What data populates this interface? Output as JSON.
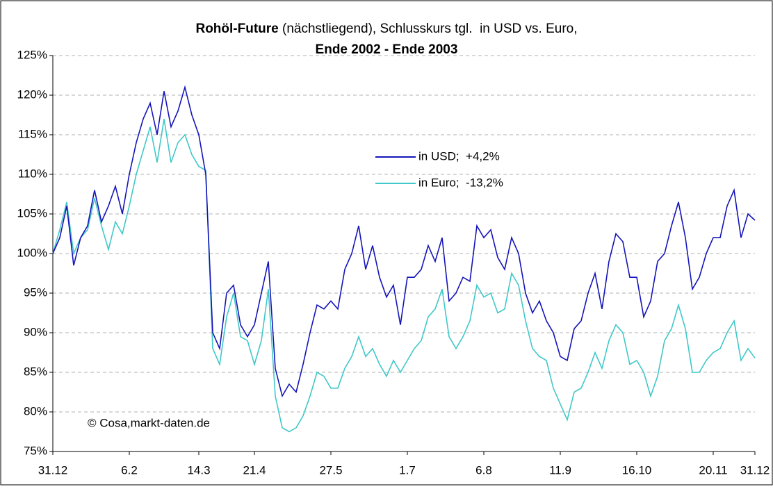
{
  "chart_data": {
    "type": "line",
    "title_parts": [
      "Rohöl-Future",
      " (nächstliegend), Schlusskurs tgl.  in USD vs. Euro,"
    ],
    "subtitle": "Ende 2002 - Ende 2003",
    "annotation": "© Cosa,markt-daten.de",
    "categories": [
      "31.12",
      null,
      null,
      null,
      null,
      null,
      null,
      null,
      null,
      null,
      null,
      "6.2",
      null,
      null,
      null,
      null,
      null,
      null,
      null,
      null,
      null,
      "14.3",
      null,
      null,
      null,
      null,
      null,
      null,
      null,
      "21.4",
      null,
      null,
      null,
      null,
      null,
      null,
      null,
      null,
      null,
      null,
      "27.5",
      null,
      null,
      null,
      null,
      null,
      null,
      null,
      null,
      null,
      null,
      "1.7",
      null,
      null,
      null,
      null,
      null,
      null,
      null,
      null,
      null,
      null,
      "6.8",
      null,
      null,
      null,
      null,
      null,
      null,
      null,
      null,
      null,
      null,
      "11.9",
      null,
      null,
      null,
      null,
      null,
      null,
      null,
      null,
      null,
      null,
      "16.10",
      null,
      null,
      null,
      null,
      null,
      null,
      null,
      null,
      null,
      null,
      "20.11",
      null,
      null,
      null,
      null,
      null,
      "31.12"
    ],
    "series": [
      {
        "name": "in USD;  +4,2%",
        "color": "#1414b8",
        "values": [
          100,
          102,
          106,
          98.5,
          102,
          103.5,
          108,
          104,
          106,
          108.5,
          105,
          110,
          114,
          117,
          119,
          115,
          120.5,
          116,
          118,
          121,
          117.5,
          115,
          110,
          90,
          88,
          95,
          96,
          91,
          89.5,
          91,
          95,
          99,
          85.5,
          82,
          83.5,
          82.5,
          86,
          90,
          93.5,
          93,
          94,
          93,
          98,
          100,
          103.5,
          98,
          101,
          97,
          94.5,
          96,
          91,
          97,
          97,
          98,
          101,
          99,
          102,
          94,
          95,
          97,
          96.5,
          103.5,
          102,
          103,
          99.5,
          98,
          102,
          100,
          95,
          92.5,
          94,
          91.5,
          90,
          87,
          86.5,
          90.5,
          91.5,
          95,
          97.5,
          93,
          99,
          102.5,
          101.5,
          97,
          97,
          92,
          94,
          99,
          100,
          103.5,
          106.5,
          102,
          95.5,
          97,
          100,
          102,
          102,
          106,
          108,
          102,
          105,
          104.2
        ]
      },
      {
        "name": "in Euro;  -13,2%",
        "color": "#40c8c8",
        "values": [
          100,
          103,
          106.5,
          100,
          102,
          103,
          107,
          103.5,
          100.5,
          104,
          102.5,
          106,
          110,
          113,
          116,
          111.5,
          117,
          111.5,
          114,
          115,
          112.5,
          111,
          110.5,
          88,
          86,
          92,
          95,
          89.5,
          89,
          86,
          89,
          95.5,
          82,
          78,
          77.5,
          78,
          79.5,
          82,
          85,
          84.5,
          83,
          83,
          85.5,
          87,
          89.5,
          87,
          88,
          86,
          84.5,
          86.5,
          85,
          86.5,
          88,
          89,
          92,
          93,
          95.5,
          89.5,
          88,
          89.5,
          91.5,
          96,
          94.5,
          95,
          92.5,
          93,
          97.5,
          96,
          91.5,
          88,
          87,
          86.5,
          83,
          81,
          79,
          82.5,
          83,
          85,
          87.5,
          85.5,
          89,
          91,
          90,
          86,
          86.5,
          85,
          82,
          84.5,
          89,
          90.5,
          93.5,
          90.5,
          85,
          85,
          86.5,
          87.5,
          88,
          90,
          91.5,
          86.5,
          88,
          86.8
        ]
      }
    ],
    "ylim": [
      75,
      125
    ],
    "yticks": [
      {
        "value": 75,
        "label": "75%"
      },
      {
        "value": 80,
        "label": "80%"
      },
      {
        "value": 85,
        "label": "85%"
      },
      {
        "value": 90,
        "label": "90%"
      },
      {
        "value": 95,
        "label": "95%"
      },
      {
        "value": 100,
        "label": "100%"
      },
      {
        "value": 105,
        "label": "105%"
      },
      {
        "value": 110,
        "label": "110%"
      },
      {
        "value": 115,
        "label": "115%"
      },
      {
        "value": 120,
        "label": "120%"
      },
      {
        "value": 125,
        "label": "125%"
      }
    ],
    "grid": true
  }
}
